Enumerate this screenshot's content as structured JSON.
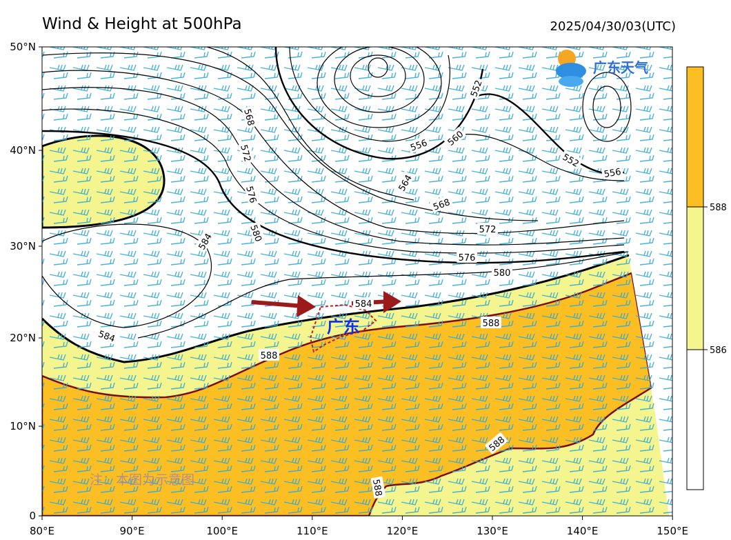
{
  "header": {
    "title": "Wind & Height at 500hPa",
    "timestamp": "2025/04/30/03(UTC)"
  },
  "logo": {
    "text": "广东天气"
  },
  "map": {
    "lat_labels": [
      "50°N",
      "40°N",
      "30°N",
      "20°N",
      "10°N",
      "0"
    ],
    "lon_labels": [
      "80°E",
      "90°E",
      "100°E",
      "110°E",
      "120°E",
      "130°E",
      "140°E",
      "150°E"
    ],
    "contour_labels": [
      "568",
      "572",
      "576",
      "580",
      "584",
      "584",
      "588",
      "588",
      "588",
      "588",
      "552",
      "556",
      "560",
      "564",
      "568",
      "572",
      "576",
      "580",
      "552",
      "556",
      "584"
    ],
    "region_label": "广东",
    "note": "注：本图为示意图"
  },
  "colorbar": {
    "labels": [
      "588",
      "586"
    ]
  }
}
